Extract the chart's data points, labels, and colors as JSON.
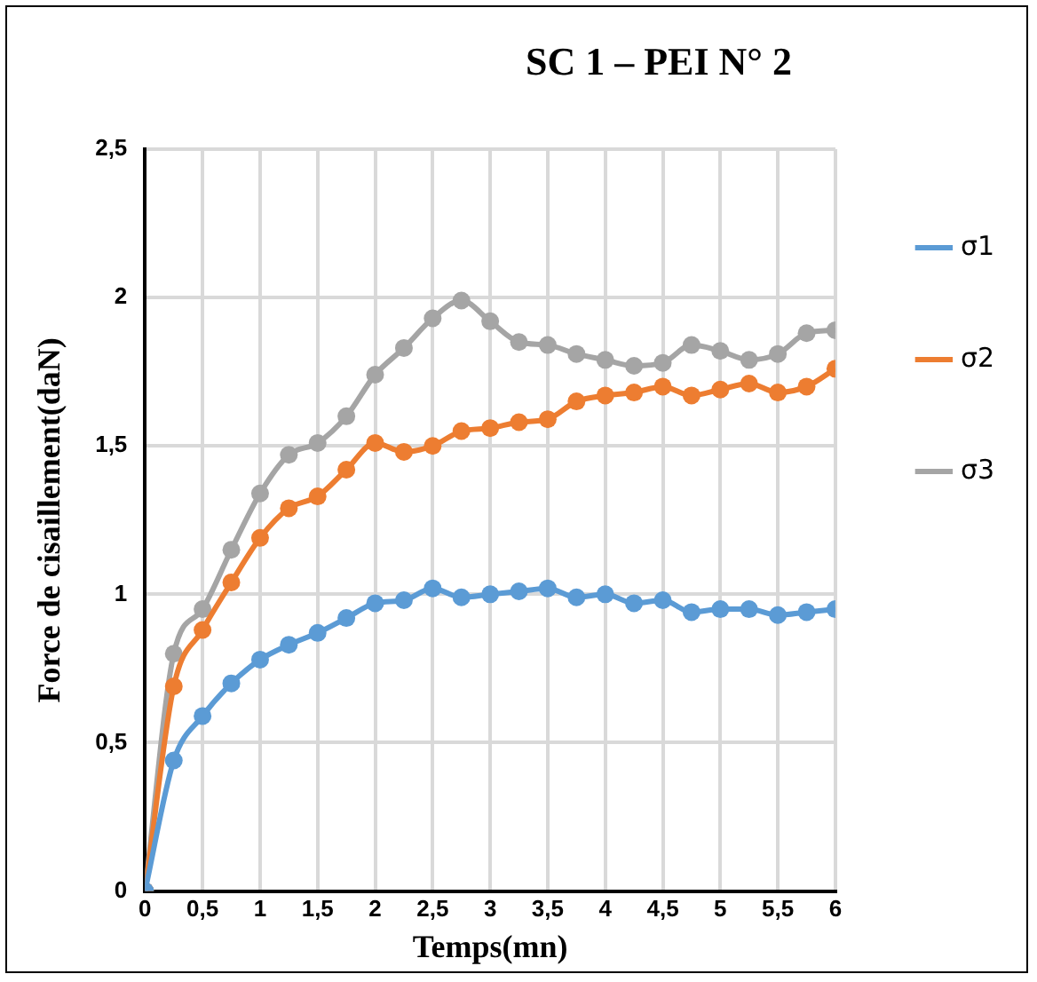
{
  "chart_data": {
    "type": "line",
    "title": "SC 1 – PEI N° 2",
    "xlabel": "Temps(mn)",
    "ylabel": "Force de cisaillement(daN)",
    "x": [
      0,
      0.25,
      0.5,
      0.75,
      1,
      1.25,
      1.5,
      1.75,
      2,
      2.25,
      2.5,
      2.75,
      3,
      3.25,
      3.5,
      3.75,
      4,
      4.25,
      4.5,
      4.75,
      5,
      5.25,
      5.5,
      5.75,
      6
    ],
    "series": [
      {
        "name": "σ1",
        "color": "#5b9bd5",
        "values": [
          0,
          0.44,
          0.59,
          0.7,
          0.78,
          0.83,
          0.87,
          0.92,
          0.97,
          0.98,
          1.02,
          0.99,
          1.0,
          1.01,
          1.02,
          0.99,
          1.0,
          0.97,
          0.98,
          0.94,
          0.95,
          0.95,
          0.93,
          0.94,
          0.95
        ]
      },
      {
        "name": "σ2",
        "color": "#ed7d31",
        "values": [
          0,
          0.69,
          0.88,
          1.04,
          1.19,
          1.29,
          1.33,
          1.42,
          1.51,
          1.48,
          1.5,
          1.55,
          1.56,
          1.58,
          1.59,
          1.65,
          1.67,
          1.68,
          1.7,
          1.67,
          1.69,
          1.71,
          1.68,
          1.7,
          1.76
        ]
      },
      {
        "name": "σ3",
        "color": "#a5a5a5",
        "values": [
          0,
          0.8,
          0.95,
          1.15,
          1.34,
          1.47,
          1.51,
          1.6,
          1.74,
          1.83,
          1.93,
          1.99,
          1.92,
          1.85,
          1.84,
          1.81,
          1.79,
          1.77,
          1.78,
          1.84,
          1.82,
          1.79,
          1.81,
          1.88,
          1.89
        ]
      }
    ],
    "xlim": [
      0,
      6
    ],
    "xticks": [
      0,
      {
        "value": 0.5,
        "label": "0,5"
      },
      1,
      {
        "value": 1.5,
        "label": "1,5"
      },
      2,
      {
        "value": 2.5,
        "label": "2,5"
      },
      3,
      {
        "value": 3.5,
        "label": "3,5"
      },
      4,
      {
        "value": 4.5,
        "label": "4,5"
      },
      5,
      {
        "value": 5.5,
        "label": "5,5"
      },
      6
    ],
    "ylim": [
      0,
      2.5
    ],
    "yticks": [
      0,
      {
        "value": 0.5,
        "label": "0,5"
      },
      1,
      {
        "value": 1.5,
        "label": "1,5"
      },
      2,
      {
        "value": 2.5,
        "label": "2,5"
      }
    ],
    "grid": true,
    "legend": "right",
    "marker": "circle",
    "line_style": "solid"
  }
}
